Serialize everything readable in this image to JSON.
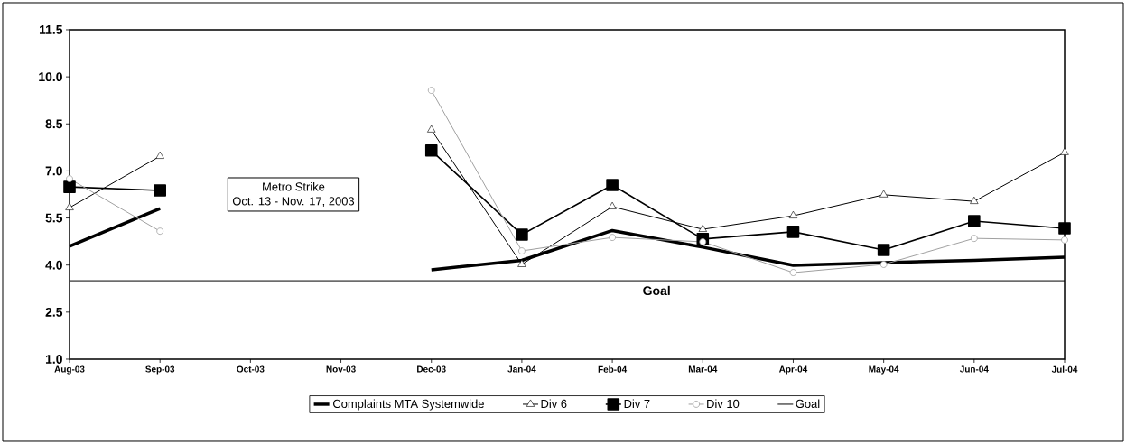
{
  "chart_data": {
    "type": "line",
    "categories": [
      "Aug-03",
      "Sep-03",
      "Oct-03",
      "Nov-03",
      "Dec-03",
      "Jan-04",
      "Feb-04",
      "Mar-04",
      "Apr-04",
      "May-04",
      "Jun-04",
      "Jul-04"
    ],
    "series": [
      {
        "name": "Complaints MTA Systemwide",
        "color": "#000000",
        "marker": "none",
        "values": [
          4.6,
          5.8,
          null,
          null,
          3.85,
          4.15,
          5.1,
          4.57,
          3.99,
          4.08,
          4.15,
          4.25
        ]
      },
      {
        "name": "Div 6",
        "color": "#000000",
        "marker": "triangle",
        "values": [
          5.83,
          7.47,
          null,
          null,
          8.31,
          4.02,
          5.86,
          5.14,
          5.57,
          6.24,
          6.03,
          7.59
        ]
      },
      {
        "name": "Div 7",
        "color": "#000000",
        "marker": "square",
        "values": [
          6.49,
          6.38,
          null,
          null,
          7.65,
          4.97,
          6.55,
          4.83,
          5.06,
          4.48,
          5.4,
          5.17
        ]
      },
      {
        "name": "Div 10",
        "color": "#a0a0a0",
        "marker": "circle",
        "values": [
          6.75,
          5.08,
          null,
          null,
          9.57,
          4.45,
          4.88,
          4.74,
          3.76,
          4.02,
          4.85,
          4.8
        ]
      },
      {
        "name": "Goal",
        "color": "#000000",
        "marker": "none",
        "values": [
          3.5,
          3.5,
          3.5,
          3.5,
          3.5,
          3.5,
          3.5,
          3.5,
          3.5,
          3.5,
          3.5,
          3.5
        ]
      }
    ],
    "ylim": [
      1,
      11.5
    ],
    "yticks": [
      {
        "value": 1,
        "label": "1.0"
      },
      {
        "value": 2.5,
        "label": "2.5"
      },
      {
        "value": 4,
        "label": "4.0"
      },
      {
        "value": 5.5,
        "label": "5.5"
      },
      {
        "value": 7,
        "label": "7.0"
      },
      {
        "value": 8.5,
        "label": "8.5"
      },
      {
        "value": 10,
        "label": "10.0"
      },
      {
        "value": 11.5,
        "label": "11.5"
      }
    ],
    "annotations": [
      "Metro Strike",
      "Oct. 13 - Nov. 17, 2003",
      "Goal"
    ],
    "grid": false,
    "legend": "bottom",
    "line_style": "solid"
  }
}
